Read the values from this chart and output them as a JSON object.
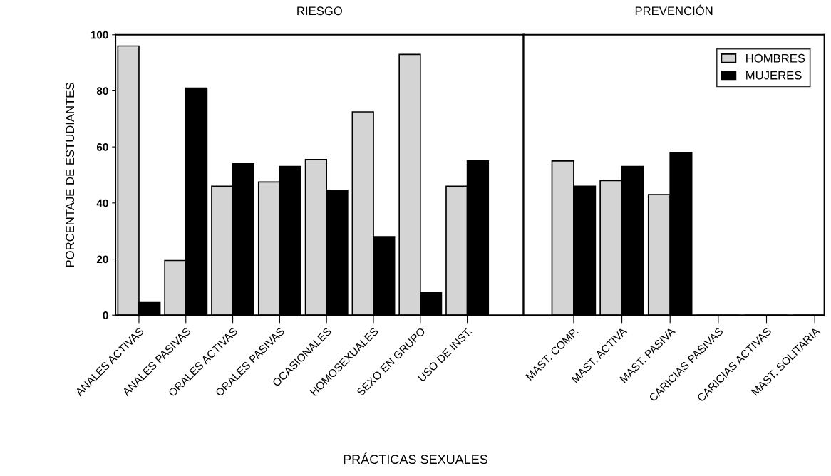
{
  "chart_data": [
    {
      "type": "bar",
      "title": "RIESGO",
      "xlabel": "PRÁCTICAS SEXUALES",
      "ylabel": "PORCENTAJE DE ESTUDIANTES",
      "categories": [
        "ANALES ACTIVAS",
        "ANALES PASIVAS",
        "ORALES ACTIVAS",
        "ORALES PASIVAS",
        "OCASIONALES",
        "HOMOSEXUALES",
        "SEXO EN GRUPO",
        "USO DE INST."
      ],
      "series": [
        {
          "color": "#d4d4d4",
          "values": [
            96,
            19.5,
            46,
            47.5,
            55.5,
            72.5,
            93,
            46
          ]
        },
        {
          "color": "#000000",
          "values": [
            4.5,
            81,
            54,
            53,
            44.5,
            28,
            8,
            55
          ]
        }
      ],
      "ylim": [
        0,
        100
      ],
      "yticks": [
        0,
        20,
        40,
        60,
        80,
        100
      ],
      "grid": false,
      "legend": false
    },
    {
      "type": "bar",
      "title": "PREVENCIÓN",
      "categories": [
        "MAST. COMP.",
        "MAST. ACTIVA",
        "MAST. PASIVA",
        "CARICIAS PASIVAS",
        "CARICIAS ACTIVAS",
        "MAST. SOLITARIA"
      ],
      "series": [
        {
          "name": "HOMBRES",
          "color": "#d4d4d4",
          "values": [
            55,
            48,
            43,
            0,
            0,
            0
          ]
        },
        {
          "name": "MUJERES",
          "color": "#000000",
          "values": [
            46,
            53,
            58,
            0,
            0,
            0
          ]
        }
      ],
      "ylim": [
        0,
        100
      ],
      "tick_labels": "x",
      "grid": false,
      "legend": "top right"
    }
  ]
}
